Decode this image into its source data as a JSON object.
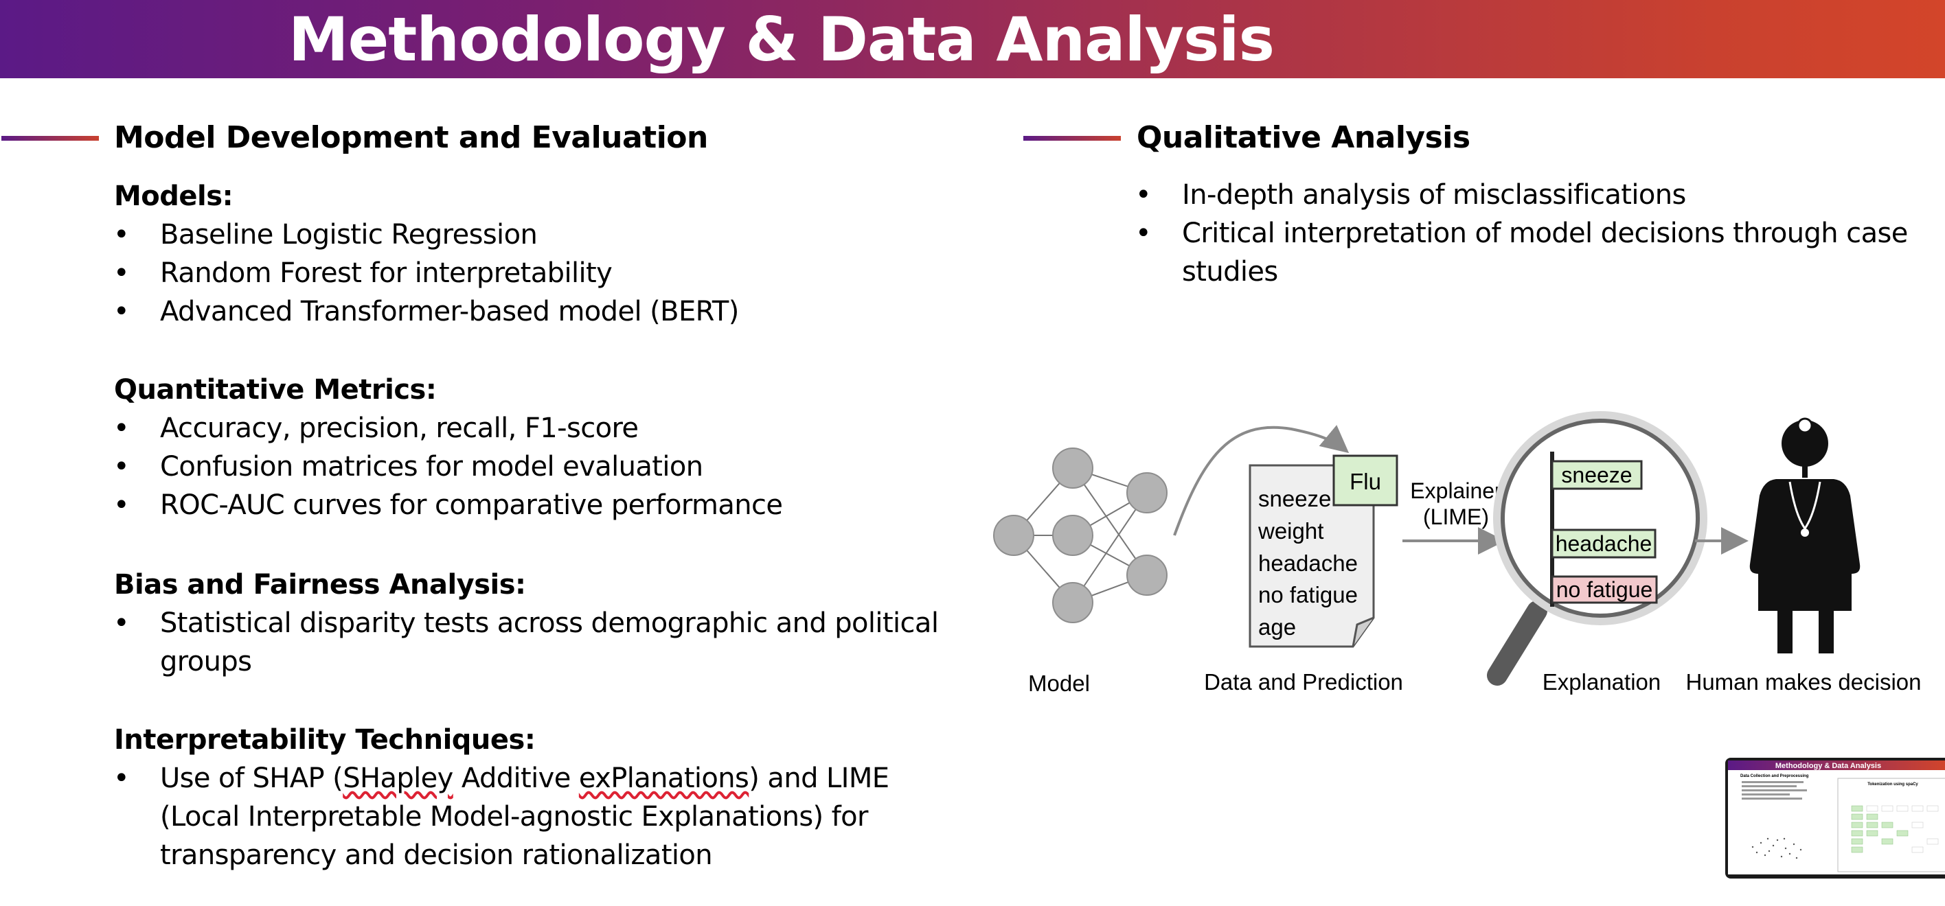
{
  "slide": {
    "title": "Methodology & Data Analysis",
    "colors": {
      "gradient_start": "#5b1a86",
      "gradient_end": "#d3452a"
    }
  },
  "left": {
    "heading": "Model Development and Evaluation",
    "groups": [
      {
        "label": "Models:",
        "items": [
          "Baseline Logistic Regression",
          "Random Forest for interpretability",
          "Advanced Transformer-based model (BERT)"
        ]
      },
      {
        "label": "Quantitative Metrics:",
        "items": [
          "Accuracy, precision, recall, F1-score",
          "Confusion matrices for model evaluation",
          "ROC-AUC curves for comparative performance"
        ]
      },
      {
        "label": "Bias and Fairness Analysis:",
        "items": [
          "Statistical disparity tests across demographic and political groups"
        ]
      },
      {
        "label": "Interpretability Techniques:",
        "items": [
          {
            "before": "Use of SHAP (",
            "misspelled": "SHapley",
            "middle": " Additive ",
            "misspelled2": "exPlanations",
            "after": ") and LIME (Local Interpretable Model-agnostic Explanations) for transparency and decision rationalization"
          }
        ]
      }
    ]
  },
  "right": {
    "heading": "Qualitative Analysis",
    "items": [
      "In-depth analysis of misclassifications",
      "Critical interpretation of model decisions through case studies"
    ]
  },
  "bullet": "•",
  "diagram": {
    "features": [
      "sneeze",
      "weight",
      "headache",
      "no fatigue",
      "age"
    ],
    "prediction": "Flu",
    "explainer": [
      "Explainer",
      "(LIME)"
    ],
    "explanation_bars": [
      "sneeze",
      "headache",
      "no fatigue"
    ],
    "captions": [
      "Model",
      "Data and Prediction",
      "Explanation",
      "Human makes decision"
    ],
    "icons": [
      "neural-network-icon",
      "document-icon",
      "magnifier-icon",
      "doctor-icon"
    ],
    "colors": {
      "node": "#b3b3b3",
      "positive_bar": "#d9efcf",
      "negative_bar": "#f2c9cc",
      "arrow": "#8a8a8a"
    }
  },
  "thumbnail": {
    "title": "Methodology & Data Analysis",
    "left_heading": "Data Collection and Preprocessing",
    "right_heading": "Tokenization using spaCy"
  }
}
